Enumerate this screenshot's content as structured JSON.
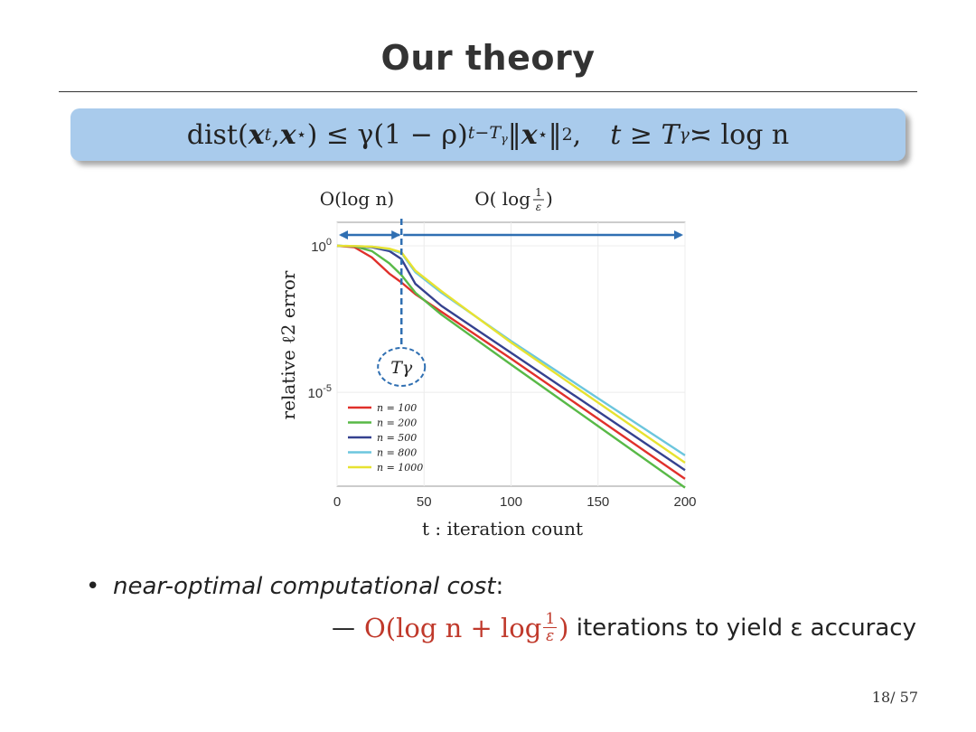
{
  "slide": {
    "title": "Our theory",
    "page_number": "18/ 57"
  },
  "theorem": {
    "dist": "dist(",
    "xt": "x",
    "t_sup": "t",
    "comma": ", ",
    "xstar": "x",
    "star_sup": "⋆",
    "le_gamma": ") ≤ γ(1 − ρ)",
    "exp_sup": "t−T",
    "exp_sub": "γ",
    "norm_open": "‖",
    "norm_x": "x",
    "norm_star": "⋆",
    "norm_close": "‖",
    "norm_sub": "2",
    "comma2": ",",
    "cond_t": "t ≥ T",
    "cond_sub": "γ",
    "cond_rest": " ≍ log n"
  },
  "bullet": {
    "marker": "•",
    "text": "near-optimal computational cost",
    "colon": ":",
    "dash": "—",
    "cost_prefix": "O(log n + log ",
    "frac_num": "1",
    "frac_den": "ε",
    "cost_suffix": ")",
    "after": " iterations to yield ε accuracy"
  },
  "chart_data": {
    "type": "line",
    "xlabel": "t : iteration count",
    "ylabel": "relative ℓ2 error",
    "x_ticks": [
      "0",
      "50",
      "100",
      "150",
      "200"
    ],
    "xlim": [
      0,
      200
    ],
    "y_ticks": [
      {
        "base": "10",
        "exp": "0"
      },
      {
        "base": "10",
        "exp": "-5"
      }
    ],
    "ylim_log10": [
      -8.2,
      0.8
    ],
    "log_scale_y": true,
    "grid": true,
    "legend_position": "bottom-left",
    "annotations": {
      "phase1_label": "O(log n)",
      "phase2_label_prefix": "O( log ",
      "phase2_frac_num": "1",
      "phase2_frac_den": "ε",
      "phase2_label_suffix": ")",
      "T_gamma_label": "Tγ",
      "T_gamma_x": 37,
      "arrow_color": "#2f6fb2"
    },
    "series": [
      {
        "name": "n = 100",
        "color": "#e0302b",
        "points": [
          [
            0,
            0
          ],
          [
            10,
            -0.05
          ],
          [
            20,
            -0.4
          ],
          [
            30,
            -0.95
          ],
          [
            37,
            -1.25
          ],
          [
            45,
            -1.65
          ],
          [
            60,
            -2.25
          ],
          [
            100,
            -3.85
          ],
          [
            150,
            -5.9
          ],
          [
            200,
            -7.95
          ]
        ]
      },
      {
        "name": "n = 200",
        "color": "#58b947",
        "points": [
          [
            0,
            0
          ],
          [
            10,
            -0.02
          ],
          [
            20,
            -0.18
          ],
          [
            30,
            -0.6
          ],
          [
            37,
            -1.0
          ],
          [
            45,
            -1.6
          ],
          [
            60,
            -2.35
          ],
          [
            100,
            -4.05
          ],
          [
            150,
            -6.15
          ],
          [
            200,
            -8.25
          ]
        ]
      },
      {
        "name": "n = 500",
        "color": "#35418f",
        "points": [
          [
            0,
            0
          ],
          [
            10,
            -0.02
          ],
          [
            20,
            -0.05
          ],
          [
            30,
            -0.18
          ],
          [
            37,
            -0.45
          ],
          [
            45,
            -1.3
          ],
          [
            60,
            -2.05
          ],
          [
            100,
            -3.65
          ],
          [
            150,
            -5.65
          ],
          [
            200,
            -7.65
          ]
        ]
      },
      {
        "name": "n = 800",
        "color": "#6cc6dd",
        "points": [
          [
            0,
            0
          ],
          [
            10,
            -0.01
          ],
          [
            20,
            -0.03
          ],
          [
            30,
            -0.12
          ],
          [
            37,
            -0.25
          ],
          [
            45,
            -0.9
          ],
          [
            60,
            -1.6
          ],
          [
            100,
            -3.25
          ],
          [
            150,
            -5.2
          ],
          [
            200,
            -7.15
          ]
        ]
      },
      {
        "name": "n = 1000",
        "color": "#e7e231",
        "points": [
          [
            0,
            0
          ],
          [
            10,
            -0.01
          ],
          [
            20,
            -0.03
          ],
          [
            30,
            -0.1
          ],
          [
            37,
            -0.22
          ],
          [
            45,
            -0.85
          ],
          [
            60,
            -1.55
          ],
          [
            100,
            -3.3
          ],
          [
            150,
            -5.35
          ],
          [
            200,
            -7.4
          ]
        ]
      }
    ]
  }
}
